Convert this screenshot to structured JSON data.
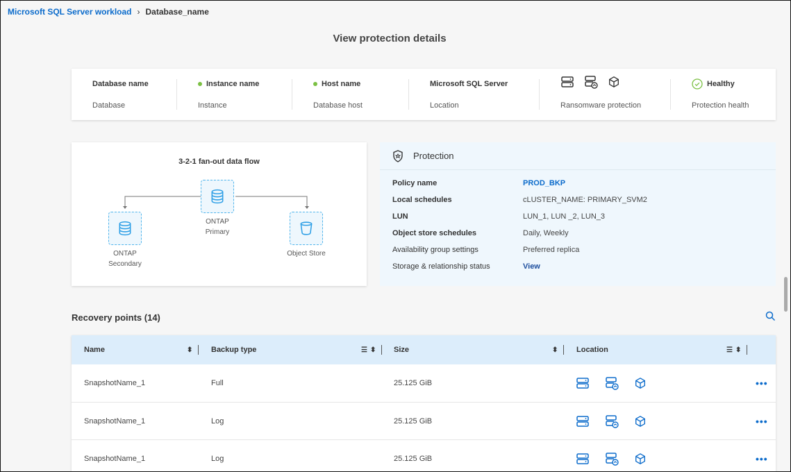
{
  "breadcrumb": {
    "parent": "Microsoft SQL Server workload",
    "current": "Database_name"
  },
  "page_title": "View protection details",
  "summary": [
    {
      "label": "Database name",
      "value": "Database",
      "dot": false
    },
    {
      "label": "Instance name",
      "value": "Instance",
      "dot": true
    },
    {
      "label": "Host name",
      "value": "Database host",
      "dot": true
    },
    {
      "label": "Microsoft SQL Server",
      "value": "Location",
      "dot": false
    },
    {
      "label": "",
      "value": "Ransomware protection",
      "icons": [
        "server-icon",
        "server-shield-icon",
        "cube-icon"
      ]
    },
    {
      "label": "Healthy",
      "value": "Protection health",
      "icon": "check-circle-icon"
    }
  ],
  "colors": {
    "accent": "#0b6bcb",
    "healthy": "#7bc043",
    "table_header": "#dcedfb",
    "flow_node": "#4eb4ec"
  },
  "flow": {
    "title": "3-2-1 fan-out data flow",
    "primary": [
      "ONTAP",
      "Primary"
    ],
    "secondary": [
      "ONTAP",
      "Secondary"
    ],
    "object_store": "Object Store"
  },
  "protection": {
    "title": "Protection",
    "rows": [
      {
        "label": "Policy name",
        "value": "PROD_BKP"
      },
      {
        "label": "Local schedules",
        "value": "cLUSTER_NAME: PRIMARY_SVM2"
      },
      {
        "label": "LUN",
        "value": "LUN_1, LUN _2, LUN_3"
      },
      {
        "label": "Object store schedules",
        "value": "Daily, Weekly"
      },
      {
        "label": "Availability group settings",
        "value": "Preferred replica"
      },
      {
        "label": "Storage & relationship status",
        "value": "View"
      }
    ]
  },
  "recovery": {
    "title": "Recovery points (14)",
    "columns": [
      "Name",
      "Backup type",
      "Size",
      "Location"
    ],
    "rows": [
      {
        "name": "SnapshotName_1",
        "type": "Full",
        "size": "25.125 GiB"
      },
      {
        "name": "SnapshotName_1",
        "type": "Log",
        "size": "25.125 GiB"
      },
      {
        "name": "SnapshotName_1",
        "type": "Log",
        "size": "25.125 GiB"
      }
    ]
  }
}
